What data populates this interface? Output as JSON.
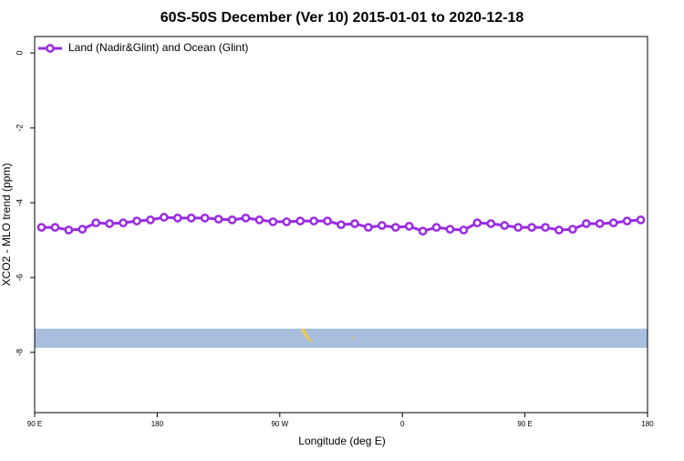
{
  "chart_data": {
    "type": "line",
    "title": "60S-50S December (Ver 10)   2015-01-01 to 2020-12-18",
    "x_label": "Longitude (deg E)",
    "y_label": "XCO2 - MLO trend (ppm)",
    "x": [
      95,
      105,
      115,
      125,
      135,
      145,
      155,
      165,
      175,
      185,
      195,
      205,
      215,
      225,
      235,
      245,
      255,
      265,
      275,
      285,
      295,
      305,
      315,
      325,
      335,
      345,
      355,
      365,
      375,
      385,
      395,
      405,
      415,
      425,
      435,
      445,
      455,
      465,
      475,
      485,
      495,
      505,
      515,
      525,
      535
    ],
    "series": [
      {
        "name": "Land (Nadir&Glint) and Ocean (Glint)",
        "color": "#9a2be2",
        "values": [
          -4.66,
          -4.66,
          -4.73,
          -4.71,
          -4.54,
          -4.56,
          -4.54,
          -4.49,
          -4.46,
          -4.39,
          -4.41,
          -4.41,
          -4.41,
          -4.44,
          -4.46,
          -4.41,
          -4.46,
          -4.51,
          -4.51,
          -4.49,
          -4.49,
          -4.49,
          -4.59,
          -4.56,
          -4.66,
          -4.61,
          -4.66,
          -4.63,
          -4.76,
          -4.66,
          -4.71,
          -4.73,
          -4.54,
          -4.56,
          -4.61,
          -4.66,
          -4.66,
          -4.66,
          -4.73,
          -4.71,
          -4.56,
          -4.56,
          -4.54,
          -4.49,
          -4.46
        ]
      }
    ],
    "xlim": [
      90,
      540
    ],
    "xticks": [
      {
        "value": 90,
        "label": "90 E"
      },
      180,
      {
        "value": 270,
        "label": "90 W"
      },
      {
        "value": 360,
        "label": "0"
      },
      {
        "value": 450,
        "label": "90 E"
      },
      {
        "value": 540,
        "label": "180"
      }
    ],
    "ylim": [
      -9.61,
      0.44
    ],
    "yticks": [
      0,
      -2,
      -4,
      -6,
      -8
    ],
    "grid": false,
    "legend": "top-left"
  }
}
